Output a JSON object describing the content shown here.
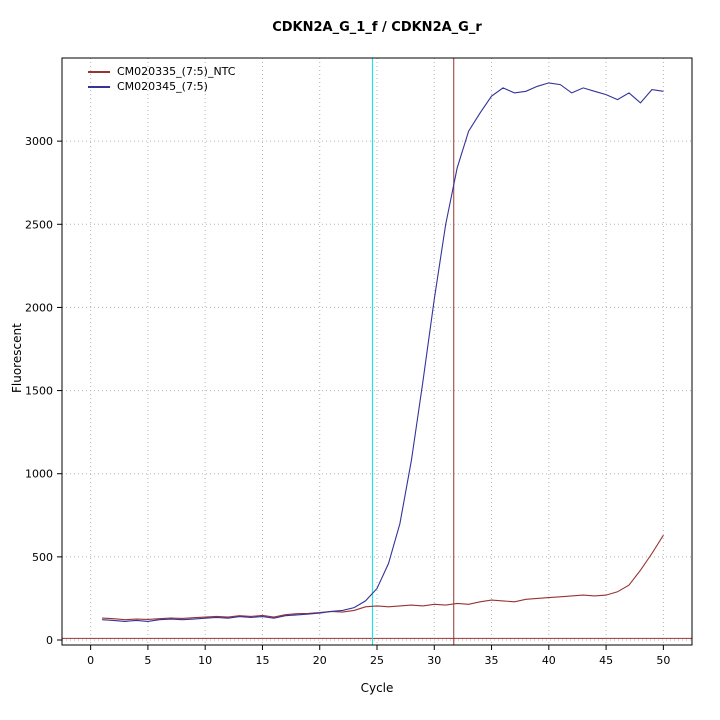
{
  "window": {
    "title": "CDKN2A_G_1_f / CDKN2A_G_r"
  },
  "chart_data": {
    "type": "line",
    "title": "CDKN2A_G_1_f / CDKN2A_G_r",
    "xlabel": "Cycle",
    "ylabel": "Fluorescent",
    "xlim": [
      -2.5,
      52.5
    ],
    "ylim": [
      -30,
      3500
    ],
    "xticks": [
      0,
      5,
      10,
      15,
      20,
      25,
      30,
      35,
      40,
      45,
      50
    ],
    "yticks": [
      0,
      500,
      1000,
      1500,
      2000,
      2500,
      3000
    ],
    "grid": true,
    "legend_position": "top-left",
    "x": [
      1,
      2,
      3,
      4,
      5,
      6,
      7,
      8,
      9,
      10,
      11,
      12,
      13,
      14,
      15,
      16,
      17,
      18,
      19,
      20,
      21,
      22,
      23,
      24,
      25,
      26,
      27,
      28,
      29,
      30,
      31,
      32,
      33,
      34,
      35,
      36,
      37,
      38,
      39,
      40,
      41,
      42,
      43,
      44,
      45,
      46,
      47,
      48,
      49,
      50
    ],
    "series": [
      {
        "name": "CM020335_(7:5)_NTC",
        "color": "#993333",
        "values": [
          132,
          128,
          122,
          126,
          124,
          128,
          132,
          130,
          134,
          138,
          142,
          138,
          146,
          142,
          148,
          138,
          152,
          158,
          160,
          165,
          172,
          168,
          178,
          200,
          205,
          200,
          205,
          210,
          205,
          215,
          210,
          220,
          215,
          230,
          240,
          235,
          230,
          245,
          250,
          255,
          260,
          265,
          270,
          265,
          270,
          290,
          330,
          420,
          520,
          630
        ]
      },
      {
        "name": "CM020345_(7:5)",
        "color": "#333399",
        "values": [
          122,
          118,
          112,
          118,
          112,
          122,
          126,
          122,
          126,
          131,
          136,
          131,
          141,
          136,
          141,
          131,
          146,
          151,
          156,
          162,
          172,
          178,
          195,
          235,
          310,
          460,
          700,
          1080,
          1550,
          2050,
          2500,
          2840,
          3060,
          3170,
          3270,
          3320,
          3290,
          3300,
          3330,
          3350,
          3340,
          3290,
          3320,
          3300,
          3280,
          3250,
          3290,
          3230,
          3310,
          3300
        ]
      }
    ],
    "vlines": [
      {
        "x": 24.6,
        "color": "#00e5e5",
        "name": "cyan-threshold-cycle-line"
      },
      {
        "x": 31.7,
        "color": "#993333",
        "name": "red-threshold-cycle-line"
      }
    ],
    "hlines": [
      {
        "y": 10,
        "color": "#993333",
        "name": "fluorescence-threshold-line"
      }
    ],
    "grid_color": "#b4b4b4",
    "box_color": "#000000"
  }
}
